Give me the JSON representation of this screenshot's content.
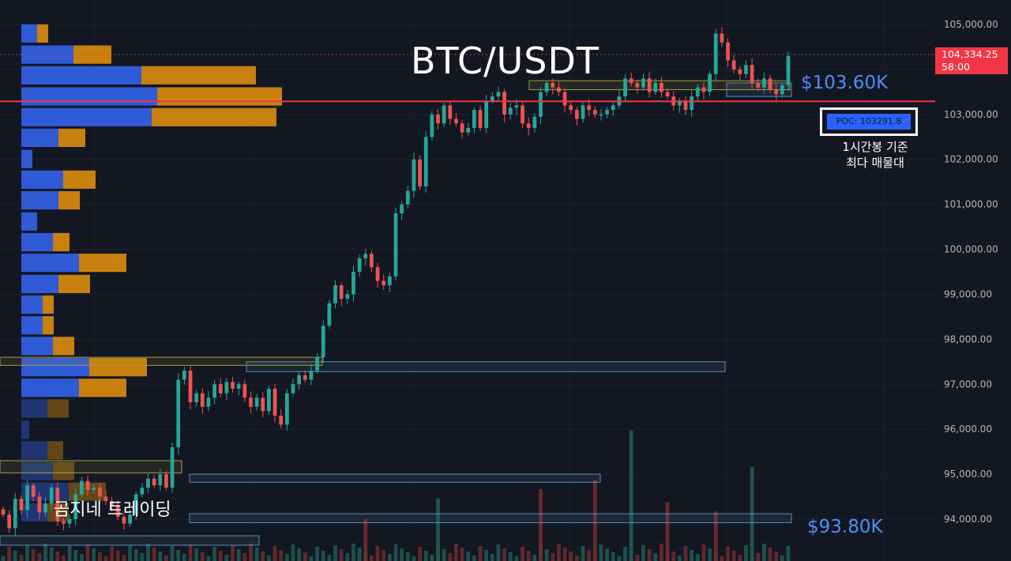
{
  "chart_data": {
    "type": "candlestick",
    "title": "BTC/USDT",
    "watermark": "곰지네 트레이딩",
    "y_axis": {
      "ticks": [
        "105,000.00",
        "104,000.00",
        "103,000.00",
        "102,000.00",
        "101,000.00",
        "100,000.00",
        "99,000.00",
        "98,000.00",
        "97,000.00",
        "96,000.00",
        "95,000.00",
        "94,000.00"
      ],
      "tick_values": [
        105000,
        104000,
        103000,
        102000,
        101000,
        100000,
        99000,
        98000,
        97000,
        96000,
        95000,
        94000
      ],
      "range": [
        93100,
        105450
      ]
    },
    "current_price": {
      "value": 104334.25,
      "label": "104,334.25",
      "countdown": "58:00"
    },
    "poc_line": {
      "value": 103291.8,
      "label": "POC: 103291.8",
      "color": "#f23645"
    },
    "poc_caption": [
      "1시간봉 기준",
      "최다 매물대"
    ],
    "levels": [
      {
        "label": "$103.60K",
        "value": 103600
      },
      {
        "label": "$93.80K",
        "value": 93800
      }
    ],
    "colors": {
      "up": "#26a69a",
      "down": "#ef5350",
      "buy_volume": "#2f5bd6",
      "sell_volume": "#c8800f",
      "level_text": "#4f8df7",
      "box": "#5b8db8",
      "box_yellow": "#a89b3a"
    },
    "close_path": [
      94100,
      93800,
      94450,
      94200,
      94750,
      94500,
      94150,
      94350,
      94700,
      93950,
      93900,
      94000,
      94550,
      94850,
      94650,
      94700,
      94500,
      94400,
      94300,
      94050,
      93900,
      94100,
      94550,
      94700,
      94900,
      94750,
      95000,
      94700,
      95600,
      97100,
      97300,
      96600,
      96800,
      96500,
      96700,
      97000,
      96800,
      97050,
      96900,
      97000,
      96700,
      96500,
      96700,
      96400,
      96900,
      96300,
      96100,
      96800,
      97000,
      97200,
      97100,
      97300,
      97600,
      98300,
      98800,
      99200,
      98900,
      99000,
      99500,
      99800,
      99900,
      99600,
      99300,
      99200,
      99400,
      100800,
      101000,
      101300,
      102000,
      101400,
      102500,
      103000,
      102800,
      103200,
      102900,
      102800,
      102600,
      102700,
      103100,
      102700,
      103300,
      103400,
      103500,
      103000,
      103150,
      103200,
      102800,
      102700,
      102950,
      103500,
      103700,
      103600,
      103500,
      103200,
      103100,
      102900,
      103200,
      103100,
      103000,
      103000,
      103100,
      103200,
      103400,
      103800,
      103700,
      103600,
      103800,
      103500,
      103700,
      103500,
      103400,
      103200,
      103300,
      103100,
      103400,
      103600,
      103500,
      103900,
      104800,
      104600,
      104200,
      104000,
      103900,
      104100,
      103700,
      103600,
      103800,
      103550,
      103450,
      103650,
      104300
    ],
    "volume_profile": [
      {
        "price": 104800,
        "buy": 20,
        "sell": 14
      },
      {
        "price": 104330,
        "buy": 66,
        "sell": 48
      },
      {
        "price": 103870,
        "buy": 152,
        "sell": 145
      },
      {
        "price": 103400,
        "buy": 172,
        "sell": 158
      },
      {
        "price": 102940,
        "buy": 165,
        "sell": 158
      },
      {
        "price": 102480,
        "buy": 47,
        "sell": 34
      },
      {
        "price": 102010,
        "buy": 14,
        "sell": 0
      },
      {
        "price": 101550,
        "buy": 53,
        "sell": 41
      },
      {
        "price": 101090,
        "buy": 47,
        "sell": 27
      },
      {
        "price": 100620,
        "buy": 20,
        "sell": 0
      },
      {
        "price": 100160,
        "buy": 40,
        "sell": 21
      },
      {
        "price": 99700,
        "buy": 73,
        "sell": 60
      },
      {
        "price": 99230,
        "buy": 47,
        "sell": 40
      },
      {
        "price": 98770,
        "buy": 27,
        "sell": 14
      },
      {
        "price": 98310,
        "buy": 27,
        "sell": 14
      },
      {
        "price": 97850,
        "buy": 40,
        "sell": 27
      },
      {
        "price": 97380,
        "buy": 86,
        "sell": 73
      },
      {
        "price": 96920,
        "buy": 73,
        "sell": 60
      },
      {
        "price": 96460,
        "buy": 33,
        "sell": 27
      },
      {
        "price": 95990,
        "buy": 10,
        "sell": 0
      },
      {
        "price": 95530,
        "buy": 33,
        "sell": 20
      },
      {
        "price": 95070,
        "buy": 40,
        "sell": 27
      },
      {
        "price": 94610,
        "buy": 60,
        "sell": 47
      },
      {
        "price": 94150,
        "buy": 33,
        "sell": 27
      }
    ],
    "volume_spikes": [
      {
        "index": 104,
        "rel": 1.0,
        "up": true
      },
      {
        "index": 124,
        "rel": 0.72,
        "up": true
      },
      {
        "index": 89,
        "rel": 0.55,
        "up": false
      },
      {
        "index": 98,
        "rel": 0.62,
        "up": false
      },
      {
        "index": 110,
        "rel": 0.45,
        "up": false
      },
      {
        "index": 72,
        "rel": 0.48,
        "up": true
      },
      {
        "index": 60,
        "rel": 0.32,
        "up": false
      },
      {
        "index": 118,
        "rel": 0.38,
        "up": false
      }
    ]
  }
}
